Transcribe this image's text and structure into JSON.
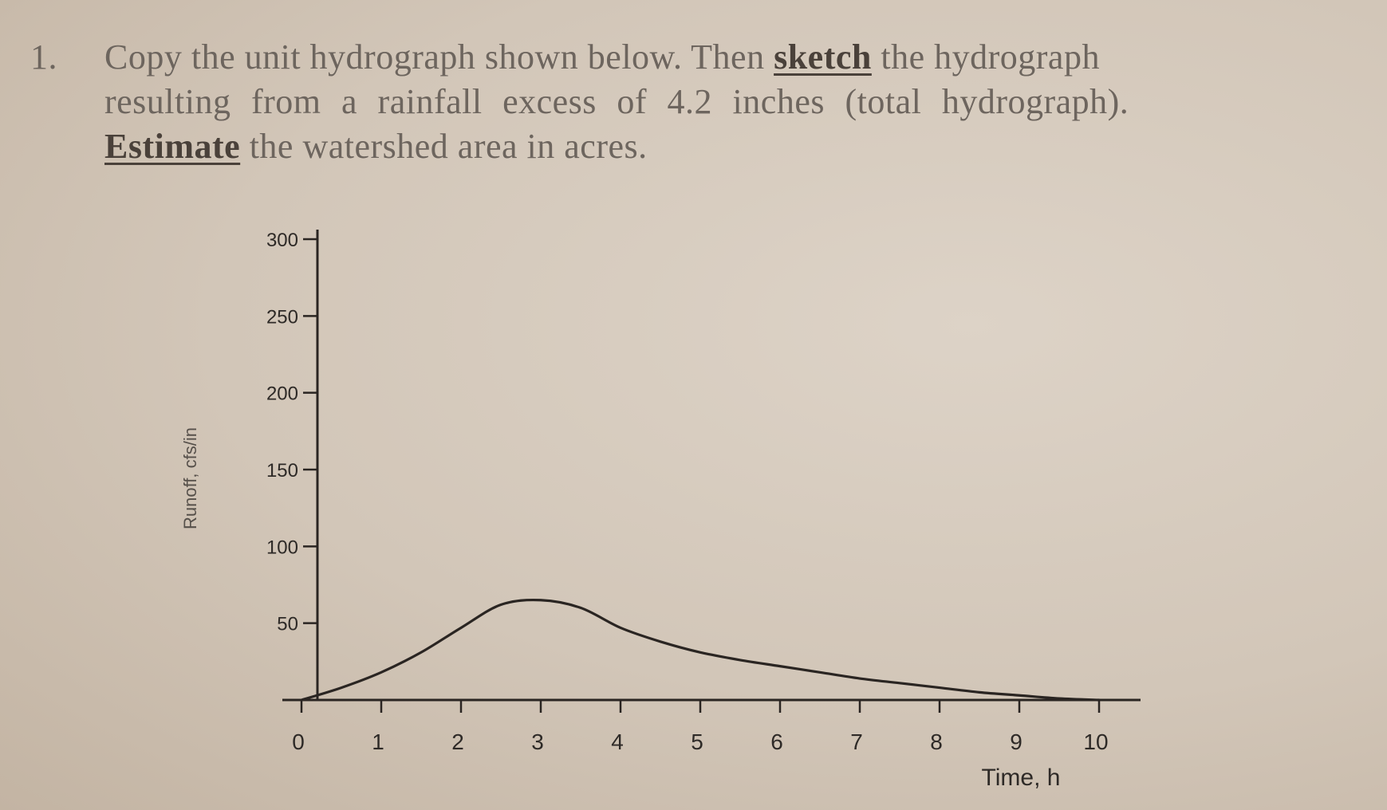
{
  "question": {
    "number": "1.",
    "line1_a": "Copy the unit hydrograph shown below. Then ",
    "line1_emph": "sketch",
    "line1_b": " the hydrograph",
    "line2": "resulting from a rainfall excess of 4.2 inches (total hydrograph).",
    "line3_emph": "Estimate",
    "line3_b": " the watershed area in acres."
  },
  "chart_data": {
    "type": "line",
    "title": "",
    "xlabel": "Time, h",
    "ylabel": "Runoff, cfs/in",
    "xlim": [
      0,
      10
    ],
    "ylim": [
      0,
      300
    ],
    "x_ticks": [
      "0",
      "1",
      "2",
      "3",
      "4",
      "5",
      "6",
      "7",
      "8",
      "9",
      "10"
    ],
    "y_ticks": [
      "50",
      "100",
      "150",
      "200",
      "250",
      "300"
    ],
    "grid": false,
    "legend": "none",
    "series": [
      {
        "x": [
          0,
          0.5,
          1,
          1.5,
          2,
          2.5,
          3,
          3.5,
          4,
          4.5,
          5,
          5.5,
          6,
          6.5,
          7,
          7.5,
          8,
          8.5,
          9,
          9.5,
          10
        ],
        "y": [
          0,
          8,
          18,
          31,
          47,
          62,
          65,
          60,
          47,
          38,
          31,
          26,
          22,
          18,
          14,
          11,
          8,
          5,
          3,
          1,
          0
        ]
      }
    ],
    "line_color": "#2a2522",
    "axis_color": "#2a2522"
  }
}
